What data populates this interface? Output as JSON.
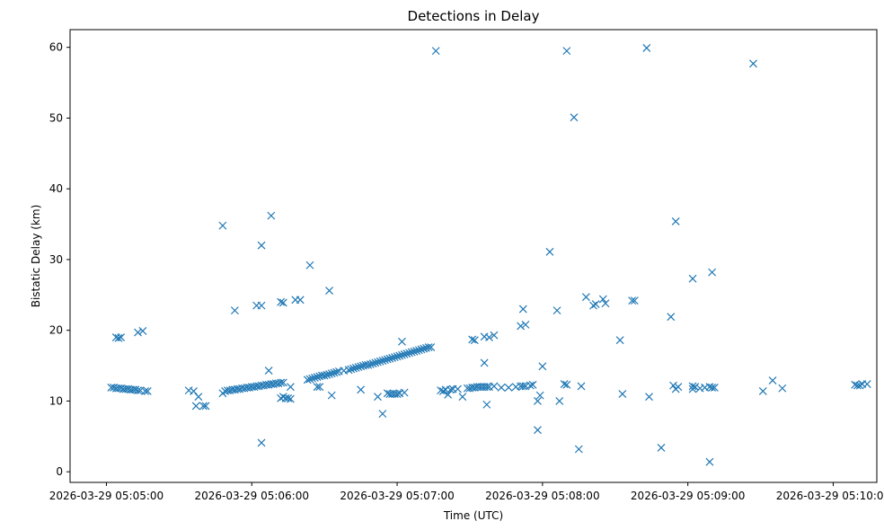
{
  "chart_data": {
    "type": "scatter",
    "title": "Detections in Delay",
    "xlabel": "Time (UTC)",
    "ylabel": "Bistatic Delay (km)",
    "x_unit": "time",
    "xlim": [
      "2026-03-29 05:04:45",
      "2026-03-29 05:10:18"
    ],
    "ylim": [
      -1.5,
      62.5
    ],
    "x_ticks": [
      {
        "value": "2026-03-29 05:05:00",
        "label": "2026-03-29 05:05:00"
      },
      {
        "value": "2026-03-29 05:06:00",
        "label": "2026-03-29 05:06:00"
      },
      {
        "value": "2026-03-29 05:07:00",
        "label": "2026-03-29 05:07:00"
      },
      {
        "value": "2026-03-29 05:08:00",
        "label": "2026-03-29 05:08:00"
      },
      {
        "value": "2026-03-29 05:09:00",
        "label": "2026-03-29 05:09:00"
      },
      {
        "value": "2026-03-29 05:10:00",
        "label": "2026-03-29 05:10:00"
      }
    ],
    "y_ticks": [
      0,
      10,
      20,
      30,
      40,
      50,
      60
    ],
    "grid": false,
    "marker": "x",
    "color": "#1f77b4",
    "series": [
      {
        "points": [
          [
            "05:05:02",
            11.9
          ],
          [
            "05:05:03",
            11.9
          ],
          [
            "05:05:04",
            11.8
          ],
          [
            "05:05:05",
            11.8
          ],
          [
            "05:05:06",
            11.8
          ],
          [
            "05:05:07",
            11.7
          ],
          [
            "05:05:08",
            11.7
          ],
          [
            "05:05:09",
            11.7
          ],
          [
            "05:05:10",
            11.6
          ],
          [
            "05:05:11",
            11.6
          ],
          [
            "05:05:12",
            11.6
          ],
          [
            "05:05:13",
            11.5
          ],
          [
            "05:05:14",
            11.5
          ],
          [
            "05:05:16",
            11.4
          ],
          [
            "05:05:17",
            11.4
          ],
          [
            "05:05:04",
            19.0
          ],
          [
            "05:05:05",
            18.9
          ],
          [
            "05:05:06",
            19.0
          ],
          [
            "05:05:13",
            19.7
          ],
          [
            "05:05:15",
            19.9
          ],
          [
            "05:05:34",
            11.5
          ],
          [
            "05:05:36",
            11.4
          ],
          [
            "05:05:37",
            9.3
          ],
          [
            "05:05:38",
            10.6
          ],
          [
            "05:05:40",
            9.3
          ],
          [
            "05:05:41",
            9.3
          ],
          [
            "05:05:48",
            11.1
          ],
          [
            "05:05:49",
            11.4
          ],
          [
            "05:05:50",
            11.5
          ],
          [
            "05:05:51",
            11.5
          ],
          [
            "05:05:52",
            11.6
          ],
          [
            "05:05:53",
            11.6
          ],
          [
            "05:05:54",
            11.7
          ],
          [
            "05:05:55",
            11.7
          ],
          [
            "05:05:56",
            11.8
          ],
          [
            "05:05:57",
            11.8
          ],
          [
            "05:05:58",
            11.9
          ],
          [
            "05:05:59",
            11.9
          ],
          [
            "05:06:00",
            12.0
          ],
          [
            "05:06:01",
            12.0
          ],
          [
            "05:06:02",
            12.1
          ],
          [
            "05:06:03",
            12.1
          ],
          [
            "05:06:04",
            12.2
          ],
          [
            "05:06:05",
            12.2
          ],
          [
            "05:06:06",
            12.3
          ],
          [
            "05:06:07",
            12.3
          ],
          [
            "05:06:08",
            12.4
          ],
          [
            "05:06:09",
            12.4
          ],
          [
            "05:06:10",
            12.5
          ],
          [
            "05:06:11",
            12.5
          ],
          [
            "05:06:12",
            12.6
          ],
          [
            "05:06:13",
            12.6
          ],
          [
            "05:05:48",
            34.8
          ],
          [
            "05:05:53",
            22.8
          ],
          [
            "05:06:02",
            23.5
          ],
          [
            "05:06:04",
            23.5
          ],
          [
            "05:06:04",
            32.0
          ],
          [
            "05:06:04",
            4.1
          ],
          [
            "05:06:08",
            36.2
          ],
          [
            "05:06:07",
            14.3
          ],
          [
            "05:06:12",
            24.0
          ],
          [
            "05:06:13",
            23.9
          ],
          [
            "05:06:18",
            24.3
          ],
          [
            "05:06:20",
            24.3
          ],
          [
            "05:06:12",
            10.4
          ],
          [
            "05:06:13",
            10.6
          ],
          [
            "05:06:14",
            10.4
          ],
          [
            "05:06:15",
            10.4
          ],
          [
            "05:06:16",
            10.3
          ],
          [
            "05:06:16",
            12.0
          ],
          [
            "05:06:24",
            29.2
          ],
          [
            "05:06:32",
            25.6
          ],
          [
            "05:06:23",
            13.0
          ],
          [
            "05:06:24",
            13.1
          ],
          [
            "05:06:25",
            13.2
          ],
          [
            "05:06:26",
            13.3
          ],
          [
            "05:06:27",
            13.4
          ],
          [
            "05:06:28",
            13.5
          ],
          [
            "05:06:29",
            13.6
          ],
          [
            "05:06:30",
            13.6
          ],
          [
            "05:06:31",
            13.7
          ],
          [
            "05:06:32",
            13.8
          ],
          [
            "05:06:33",
            13.9
          ],
          [
            "05:06:34",
            14.0
          ],
          [
            "05:06:35",
            14.1
          ],
          [
            "05:06:36",
            14.2
          ],
          [
            "05:06:38",
            14.3
          ],
          [
            "05:06:40",
            14.4
          ],
          [
            "05:06:41",
            14.5
          ],
          [
            "05:06:42",
            14.6
          ],
          [
            "05:06:43",
            14.7
          ],
          [
            "05:06:44",
            14.8
          ],
          [
            "05:06:45",
            14.9
          ],
          [
            "05:06:46",
            15.0
          ],
          [
            "05:06:47",
            15.1
          ],
          [
            "05:06:48",
            15.1
          ],
          [
            "05:06:49",
            15.2
          ],
          [
            "05:06:50",
            15.3
          ],
          [
            "05:06:51",
            15.4
          ],
          [
            "05:06:52",
            15.5
          ],
          [
            "05:06:53",
            15.6
          ],
          [
            "05:06:54",
            15.7
          ],
          [
            "05:06:55",
            15.8
          ],
          [
            "05:06:56",
            15.9
          ],
          [
            "05:06:57",
            16.0
          ],
          [
            "05:06:58",
            16.1
          ],
          [
            "05:06:59",
            16.2
          ],
          [
            "05:07:00",
            16.3
          ],
          [
            "05:07:01",
            16.4
          ],
          [
            "05:07:02",
            16.5
          ],
          [
            "05:07:03",
            16.6
          ],
          [
            "05:07:04",
            16.7
          ],
          [
            "05:07:05",
            16.8
          ],
          [
            "05:07:06",
            16.9
          ],
          [
            "05:07:07",
            17.0
          ],
          [
            "05:07:08",
            17.1
          ],
          [
            "05:07:09",
            17.2
          ],
          [
            "05:07:10",
            17.3
          ],
          [
            "05:07:11",
            17.4
          ],
          [
            "05:07:12",
            17.5
          ],
          [
            "05:07:13",
            17.6
          ],
          [
            "05:07:14",
            17.6
          ],
          [
            "05:06:27",
            12.0
          ],
          [
            "05:06:28",
            12.0
          ],
          [
            "05:06:33",
            10.8
          ],
          [
            "05:06:45",
            11.6
          ],
          [
            "05:06:52",
            10.6
          ],
          [
            "05:06:54",
            8.2
          ],
          [
            "05:06:56",
            11.1
          ],
          [
            "05:06:57",
            11.0
          ],
          [
            "05:06:58",
            11.0
          ],
          [
            "05:06:59",
            11.0
          ],
          [
            "05:07:00",
            11.0
          ],
          [
            "05:07:01",
            11.1
          ],
          [
            "05:07:03",
            11.2
          ],
          [
            "05:07:02",
            18.4
          ],
          [
            "05:07:16",
            59.5
          ],
          [
            "05:07:18",
            11.5
          ],
          [
            "05:07:19",
            11.4
          ],
          [
            "05:07:20",
            11.6
          ],
          [
            "05:07:21",
            10.9
          ],
          [
            "05:07:22",
            11.6
          ],
          [
            "05:07:23",
            11.7
          ],
          [
            "05:07:25",
            11.7
          ],
          [
            "05:07:27",
            10.6
          ],
          [
            "05:07:29",
            11.8
          ],
          [
            "05:07:30",
            11.8
          ],
          [
            "05:07:31",
            11.9
          ],
          [
            "05:07:32",
            11.9
          ],
          [
            "05:07:33",
            12.0
          ],
          [
            "05:07:34",
            12.0
          ],
          [
            "05:07:35",
            12.0
          ],
          [
            "05:07:36",
            12.0
          ],
          [
            "05:07:37",
            12.0
          ],
          [
            "05:07:38",
            12.0
          ],
          [
            "05:07:40",
            12.1
          ],
          [
            "05:07:31",
            18.7
          ],
          [
            "05:07:32",
            18.6
          ],
          [
            "05:07:36",
            19.1
          ],
          [
            "05:07:38",
            19.0
          ],
          [
            "05:07:40",
            19.3
          ],
          [
            "05:07:36",
            15.4
          ],
          [
            "05:07:37",
            9.5
          ],
          [
            "05:07:43",
            11.9
          ],
          [
            "05:07:46",
            11.9
          ],
          [
            "05:07:49",
            12.0
          ],
          [
            "05:07:51",
            12.1
          ],
          [
            "05:07:52",
            12.1
          ],
          [
            "05:07:53",
            12.1
          ],
          [
            "05:07:55",
            12.2
          ],
          [
            "05:07:56",
            12.3
          ],
          [
            "05:07:51",
            20.6
          ],
          [
            "05:07:53",
            20.8
          ],
          [
            "05:07:52",
            23.0
          ],
          [
            "05:07:58",
            5.9
          ],
          [
            "05:07:58",
            10.0
          ],
          [
            "05:07:59",
            10.8
          ],
          [
            "05:08:00",
            14.9
          ],
          [
            "05:08:03",
            31.1
          ],
          [
            "05:08:06",
            22.8
          ],
          [
            "05:08:07",
            10.0
          ],
          [
            "05:08:09",
            12.4
          ],
          [
            "05:08:10",
            12.3
          ],
          [
            "05:08:10",
            59.5
          ],
          [
            "05:08:13",
            50.1
          ],
          [
            "05:08:15",
            3.2
          ],
          [
            "05:08:16",
            12.1
          ],
          [
            "05:08:18",
            24.7
          ],
          [
            "05:08:21",
            23.5
          ],
          [
            "05:08:22",
            23.7
          ],
          [
            "05:08:25",
            24.4
          ],
          [
            "05:08:26",
            23.8
          ],
          [
            "05:08:32",
            18.6
          ],
          [
            "05:08:33",
            11.0
          ],
          [
            "05:08:37",
            24.2
          ],
          [
            "05:08:38",
            24.2
          ],
          [
            "05:08:43",
            59.9
          ],
          [
            "05:08:44",
            10.6
          ],
          [
            "05:08:49",
            3.4
          ],
          [
            "05:08:53",
            21.9
          ],
          [
            "05:08:54",
            12.2
          ],
          [
            "05:08:55",
            11.7
          ],
          [
            "05:08:56",
            12.0
          ],
          [
            "05:08:55",
            35.4
          ],
          [
            "05:09:02",
            12.1
          ],
          [
            "05:09:02",
            11.7
          ],
          [
            "05:09:03",
            12.0
          ],
          [
            "05:09:02",
            27.3
          ],
          [
            "05:09:05",
            11.8
          ],
          [
            "05:09:07",
            11.9
          ],
          [
            "05:09:09",
            12.0
          ],
          [
            "05:09:10",
            11.9
          ],
          [
            "05:09:11",
            11.9
          ],
          [
            "05:09:09",
            1.4
          ],
          [
            "05:09:10",
            28.2
          ],
          [
            "05:09:27",
            57.7
          ],
          [
            "05:09:31",
            11.4
          ],
          [
            "05:09:35",
            12.9
          ],
          [
            "05:09:39",
            11.8
          ],
          [
            "05:10:09",
            12.3
          ],
          [
            "05:10:10",
            12.2
          ],
          [
            "05:10:11",
            12.2
          ],
          [
            "05:10:12",
            12.4
          ],
          [
            "05:10:14",
            12.4
          ]
        ]
      }
    ]
  }
}
